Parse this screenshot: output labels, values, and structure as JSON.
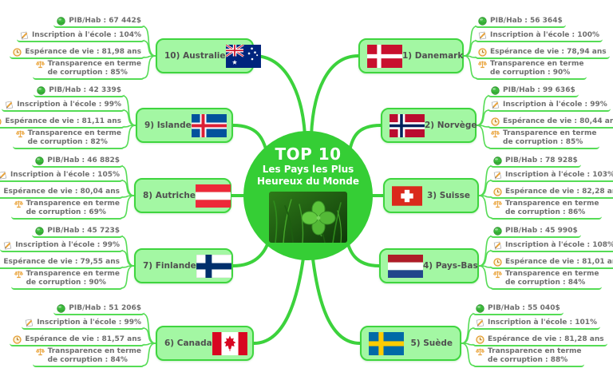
{
  "center": {
    "title": "TOP 10",
    "subtitle_line1": "Les Pays les Plus",
    "subtitle_line2": "Heureux du Monde",
    "image": "four-leaf-clover-in-grass-photo"
  },
  "icons": {
    "pib": "money-ball-icon",
    "school": "pencil-icon",
    "life": "clock-icon",
    "corruption": "scales-icon"
  },
  "colors": {
    "branch_green": "#3cd23c",
    "stat_line_green": "#55dc55",
    "node_fill": "#a3f7a3",
    "node_border": "#3fd53f",
    "circle_fill": "#35ce35",
    "node_text": "#4f4f4f",
    "stat_text": "#6e6e6e"
  },
  "branches": [
    {
      "label": "1) Danemark",
      "flag": "denmark",
      "stats": {
        "pib": "PIB/Hab : 56 364$",
        "school": "Inscription à l'école : 100%",
        "life": "Espérance de vie : 78,94 ans",
        "corruption_1": "Transparence en terme",
        "corruption_2": "de corruption : 90%"
      }
    },
    {
      "label": "2) Norvège",
      "flag": "norway",
      "stats": {
        "pib": "PIB/Hab : 99 636$",
        "school": "Inscription à l'école : 99%",
        "life": "Espérance de vie : 80,44 ans",
        "corruption_1": "Transparence en terme",
        "corruption_2": "de corruption : 85%"
      }
    },
    {
      "label": "3) Suisse",
      "flag": "switzerland",
      "stats": {
        "pib": "PIB/Hab : 78 928$",
        "school": "Inscription à l'école : 103%",
        "life": "Espérance de vie : 82,28 ans",
        "corruption_1": "Transparence en terme",
        "corruption_2": "de corruption : 86%"
      }
    },
    {
      "label": "4) Pays-Bas",
      "flag": "netherlands",
      "stats": {
        "pib": "PIB/Hab : 45 990$",
        "school": "Inscription à l'école : 108%",
        "life": "Espérance de vie : 81,01 ans",
        "corruption_1": "Transparence en terme",
        "corruption_2": "de corruption : 84%"
      }
    },
    {
      "label": "5) Suède",
      "flag": "sweden",
      "stats": {
        "pib": "PIB/Hab : 55 040$",
        "school": "Inscription à l'école : 101%",
        "life": "Espérance de vie : 81,28 ans",
        "corruption_1": "Transparence en terme",
        "corruption_2": "de corruption : 88%"
      }
    },
    {
      "label": "6) Canada",
      "flag": "canada",
      "stats": {
        "pib": "PIB/Hab : 51 206$",
        "school": "Inscription à l'école : 99%",
        "life": "Espérance de vie : 81,57 ans",
        "corruption_1": "Transparence en terme",
        "corruption_2": "de corruption : 84%"
      }
    },
    {
      "label": "7) Finlande",
      "flag": "finland",
      "stats": {
        "pib": "PIB/Hab : 45 723$",
        "school": "Inscription à l'école : 99%",
        "life": "Espérance de vie : 79,55 ans",
        "corruption_1": "Transparence en terme",
        "corruption_2": "de corruption : 90%"
      }
    },
    {
      "label": "8) Autriche",
      "flag": "austria",
      "stats": {
        "pib": "PIB/Hab : 46 882$",
        "school": "Inscription à l'école : 105%",
        "life": "Espérance de vie : 80,04 ans",
        "corruption_1": "Transparence en terme",
        "corruption_2": "de corruption : 69%"
      }
    },
    {
      "label": "9) Islande",
      "flag": "iceland",
      "stats": {
        "pib": "PIB/Hab : 42 339$",
        "school": "Inscription à l'école : 99%",
        "life": "Espérance de vie : 81,11 ans",
        "corruption_1": "Transparence en terme",
        "corruption_2": "de corruption : 82%"
      }
    },
    {
      "label": "10) Australie",
      "flag": "australia",
      "stats": {
        "pib": "PIB/Hab : 67 442$",
        "school": "Inscription à l'école : 104%",
        "life": "Espérance de vie : 81,98 ans",
        "corruption_1": "Transparence en terme",
        "corruption_2": "de corruption : 85%"
      }
    }
  ]
}
